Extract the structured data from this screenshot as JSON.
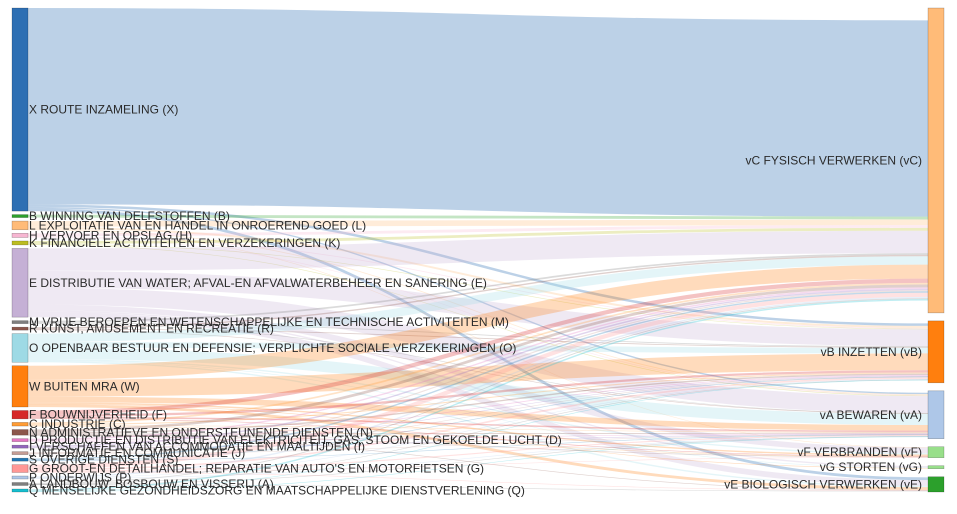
{
  "chart_data": {
    "type": "sankey",
    "sources": [
      {
        "label": "X ROUTE INZAMELING (X)",
        "color": "#2e6fb3",
        "flows": [
          70,
          0.9,
          0.5,
          0,
          0,
          1
        ]
      },
      {
        "label": "B WINNING VAN DELFSTOFFEN (B)",
        "color": "#2ca02c",
        "flows": [
          1,
          0,
          0,
          0,
          0,
          0
        ]
      },
      {
        "label": "L EXPLOITATIE VAN EN HANDEL IN ONROEREND GOED (L)",
        "color": "#ffbb78",
        "flows": [
          2,
          0.7,
          0.3,
          0.1,
          0,
          0
        ]
      },
      {
        "label": "H VERVOER EN OPSLAG (H)",
        "color": "#f7b6d2",
        "flows": [
          1,
          0.3,
          0.2,
          0,
          0,
          0
        ]
      },
      {
        "label": "K FINANCIELE ACTIVITEITEN EN VERZEKERINGEN (K)",
        "color": "#bcbd22",
        "flows": [
          1,
          0.2,
          0.2,
          0,
          0,
          0
        ]
      },
      {
        "label": "E DISTRIBUTIE VAN WATER; AFVAL-EN AFVALWATERBEHEER EN SANERING (E)",
        "color": "#c5b0d5",
        "flows": [
          8,
          6,
          6,
          2,
          0.5,
          2
        ]
      },
      {
        "label": "M VRIJE BEROEPEN EN WETENSCHAPPELIJKE EN TECHNISCHE ACTIVITEITEN (M)",
        "color": "#7f7f7f",
        "flows": [
          0.6,
          0.3,
          0.1,
          0,
          0,
          0
        ]
      },
      {
        "label": "R KUNST, AMUSEMENT EN RECREATIE (R)",
        "color": "#8c564b",
        "flows": [
          0.5,
          0.3,
          0.2,
          0,
          0,
          0
        ]
      },
      {
        "label": "O OPENBAAR BESTUUR EN DEFENSIE; VERPLICHTE SOCIALE VERZEKERINGEN (O)",
        "color": "#9edae5",
        "flows": [
          3,
          2,
          4,
          0.5,
          0.2,
          0.5
        ]
      },
      {
        "label": "W BUITEN MRA (W)",
        "color": "#ff7f0e",
        "flows": [
          5,
          6,
          2,
          0.5,
          0.2,
          1
        ]
      },
      {
        "label": "F BOUWNIJVERHEID (F)",
        "color": "#d62728",
        "flows": [
          1.5,
          0.8,
          0.5,
          0.2,
          0,
          0
        ]
      },
      {
        "label": "C INDUSTRIE (C)",
        "color": "#ff9c35",
        "flows": [
          0.6,
          0.4,
          0.2,
          0.1,
          0,
          0
        ]
      },
      {
        "label": "N ADMINISTRATIEVE EN ONDERSTEUNENDE DIENSTEN (N)",
        "color": "#8c564b",
        "flows": [
          1,
          0.5,
          0.3,
          0.1,
          0,
          0.1
        ]
      },
      {
        "label": "D PRODUCTIE EN DISTRIBUTIE VAN ELEKTRICITEIT, GAS, STOOM EN GEKOELDE LUCHT (D)",
        "color": "#e377c2",
        "flows": [
          0.5,
          0.3,
          0.2,
          0,
          0,
          0
        ]
      },
      {
        "label": "I VERSCHAFFEN VAN ACCOMMODATIE EN MAALTIJDEN (I)",
        "color": "#9467bd",
        "flows": [
          0.5,
          0.2,
          0.1,
          0,
          0,
          0
        ]
      },
      {
        "label": "J INFORMATIE EN COMMUNICATIE (J)",
        "color": "#c49c94",
        "flows": [
          0.4,
          0.1,
          0.1,
          0,
          0,
          0
        ]
      },
      {
        "label": "S OVERIGE DIENSTEN (S)",
        "color": "#1f77b4",
        "flows": [
          0.5,
          0.2,
          0.1,
          0,
          0,
          0
        ]
      },
      {
        "label": "G GROOT-EN DETAILHANDEL; REPARATIE VAN AUTO'S EN MOTORFIETSEN (G)",
        "color": "#ff9896",
        "flows": [
          1.5,
          0.6,
          0.4,
          0.1,
          0,
          0.2
        ]
      },
      {
        "label": "P ONDERWIJS (P)",
        "color": "#aec7e8",
        "flows": [
          0.5,
          0.2,
          0.1,
          0,
          0,
          0
        ]
      },
      {
        "label": "A LANDBOUW, BOSBOUW EN VISSERIJ (A)",
        "color": "#7f7f7f",
        "flows": [
          0.3,
          0.1,
          0.1,
          0,
          0,
          0.2
        ]
      },
      {
        "label": "Q MENSELIJKE GEZONDHEIDSZORG EN MAATSCHAPPELIJKE DIENSTVERLENING (Q)",
        "color": "#17becf",
        "flows": [
          0.5,
          0.2,
          0.1,
          0,
          0,
          0
        ]
      }
    ],
    "targets": [
      {
        "label": "vC FYSISCH VERWERKEN (vC)",
        "color": "#ffbb78"
      },
      {
        "label": "vB INZETTEN (vB)",
        "color": "#ff7f0e"
      },
      {
        "label": "vA BEWAREN (vA)",
        "color": "#aec7e8"
      },
      {
        "label": "vF VERBRANDEN (vF)",
        "color": "#98df8a"
      },
      {
        "label": "vG STORTEN (vG)",
        "color": "#98df8a"
      },
      {
        "label": "vE BIOLOGISCH VERWERKEN (vE)",
        "color": "#2ca02c"
      }
    ]
  }
}
